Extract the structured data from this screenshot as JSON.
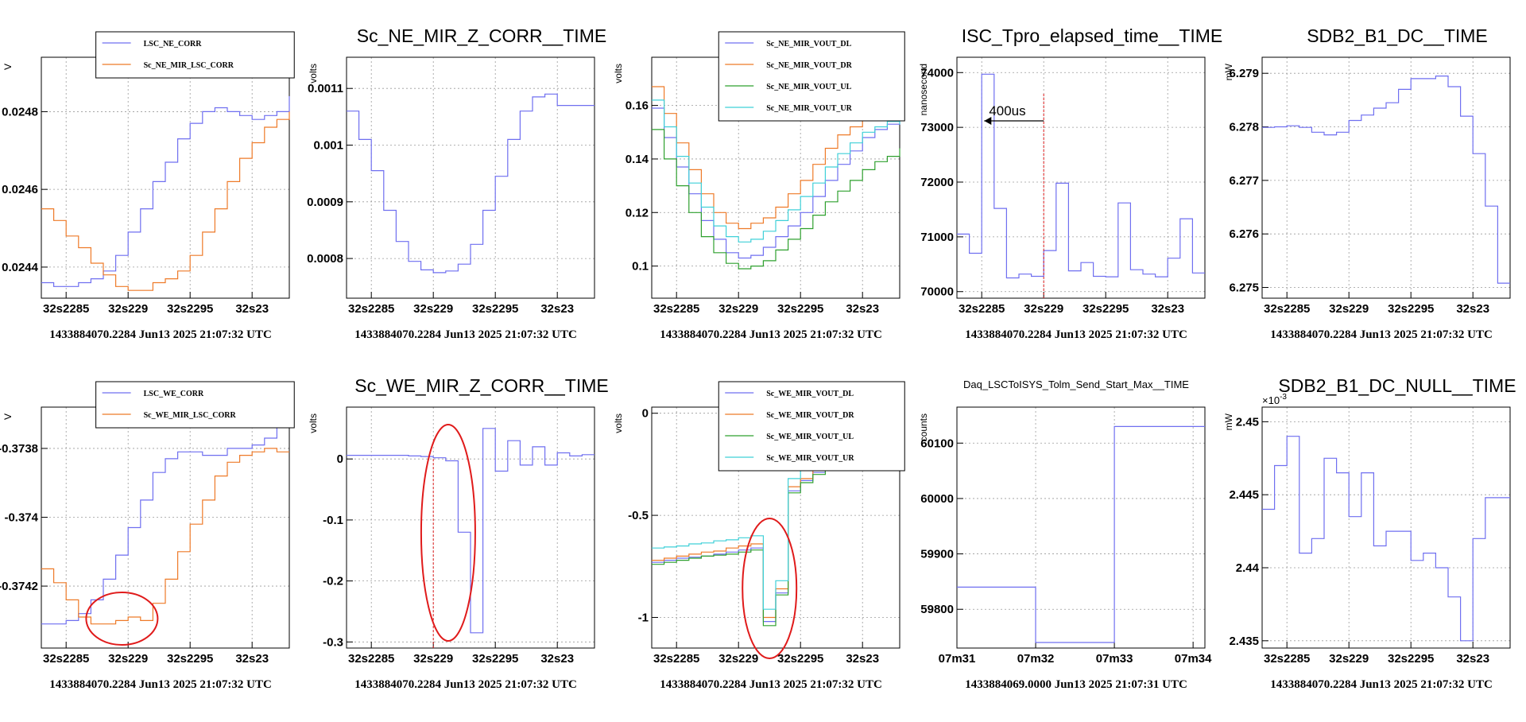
{
  "colors": {
    "blue": "#6f6ff0",
    "orange": "#ee7a28",
    "green": "#2ea02e",
    "cyan": "#3fd0d8",
    "red": "#e01b1b",
    "grid": "#9a9a9a"
  },
  "chart_data": [
    {
      "type": "line",
      "step": true,
      "title": "",
      "ylabel": "V",
      "ylim": [
        0.02432,
        0.02494
      ],
      "yticks": [
        {
          "v": 0.0244,
          "label": "0.0244"
        },
        {
          "v": 0.0246,
          "label": "0.0246"
        },
        {
          "v": 0.0248,
          "label": "0.0248"
        }
      ],
      "xticks": [
        "32s2285",
        "32s229",
        "32s2295",
        "32s23"
      ],
      "xlim": [
        0,
        20
      ],
      "xtick_pos": [
        2,
        7,
        12,
        17
      ],
      "timestamp": "1433884070.2284 Jun13 2025 21:07:32 UTC",
      "legend": {
        "pos": "top",
        "frame": [
          0.22,
          0.97,
          1.02,
          0.83
        ]
      },
      "series": [
        {
          "name": "LSC_NE_CORR",
          "color": "blue",
          "values": [
            0.02436,
            0.02435,
            0.02435,
            0.02436,
            0.02437,
            0.02439,
            0.02443,
            0.02449,
            0.02455,
            0.02462,
            0.02467,
            0.02473,
            0.02477,
            0.0248,
            0.02481,
            0.0248,
            0.02479,
            0.02478,
            0.02479,
            0.0248,
            0.02484
          ]
        },
        {
          "name": "Sc_NE_MIR_LSC_CORR",
          "color": "orange",
          "values": [
            0.02455,
            0.02452,
            0.02448,
            0.02445,
            0.02441,
            0.02438,
            0.02435,
            0.02434,
            0.02434,
            0.02436,
            0.02437,
            0.02439,
            0.02443,
            0.02449,
            0.02455,
            0.02462,
            0.02468,
            0.02472,
            0.02476,
            0.02478,
            0.0248
          ]
        }
      ]
    },
    {
      "type": "line",
      "step": true,
      "title": "Sc_NE_MIR_Z_CORR__TIME",
      "ylabel": "volts",
      "ylim": [
        0.00073,
        0.001155
      ],
      "yticks": [
        {
          "v": 0.0008,
          "label": "0.0008"
        },
        {
          "v": 0.0009,
          "label": "0.0009"
        },
        {
          "v": 0.001,
          "label": "0.001"
        },
        {
          "v": 0.0011,
          "label": "0.0011"
        }
      ],
      "xticks": [
        "32s2285",
        "32s229",
        "32s2295",
        "32s23"
      ],
      "xlim": [
        0,
        20
      ],
      "xtick_pos": [
        2,
        7,
        12,
        17
      ],
      "timestamp": "1433884070.2284 Jun13 2025 21:07:32 UTC",
      "series": [
        {
          "name": "",
          "color": "blue",
          "values": [
            0.00106,
            0.00101,
            0.000955,
            0.000885,
            0.00083,
            0.000795,
            0.00078,
            0.000775,
            0.000778,
            0.00079,
            0.000825,
            0.000885,
            0.000945,
            0.00101,
            0.00106,
            0.001085,
            0.00109,
            0.00107,
            0.00107,
            0.00107,
            0.00107
          ]
        }
      ]
    },
    {
      "type": "line",
      "step": true,
      "title": "",
      "ylabel": "volts",
      "ylim": [
        0.088,
        0.178
      ],
      "yticks": [
        {
          "v": 0.1,
          "label": "0.1"
        },
        {
          "v": 0.12,
          "label": "0.12"
        },
        {
          "v": 0.14,
          "label": "0.14"
        },
        {
          "v": 0.16,
          "label": "0.16"
        }
      ],
      "xticks": [
        "32s2285",
        "32s229",
        "32s2295",
        "32s23"
      ],
      "xlim": [
        0,
        20
      ],
      "xtick_pos": [
        2,
        7,
        12,
        17
      ],
      "timestamp": "1433884070.2284 Jun13 2025 21:07:32 UTC",
      "legend": {
        "pos": "top-right",
        "frame": [
          0.27,
          0.97,
          1.02,
          0.78
        ]
      },
      "series": [
        {
          "name": "Sc_NE_MIR_VOUT_DL",
          "color": "blue",
          "values": [
            0.159,
            0.148,
            0.137,
            0.127,
            0.117,
            0.11,
            0.105,
            0.103,
            0.104,
            0.107,
            0.111,
            0.115,
            0.12,
            0.126,
            0.132,
            0.138,
            0.143,
            0.148,
            0.151,
            0.153,
            0.155
          ]
        },
        {
          "name": "Sc_NE_MIR_VOUT_DR",
          "color": "orange",
          "values": [
            0.167,
            0.157,
            0.146,
            0.136,
            0.127,
            0.12,
            0.116,
            0.114,
            0.116,
            0.118,
            0.122,
            0.127,
            0.132,
            0.138,
            0.144,
            0.149,
            0.152,
            0.156,
            0.158,
            0.16,
            0.16
          ]
        },
        {
          "name": "Sc_NE_MIR_VOUT_UL",
          "color": "green",
          "values": [
            0.151,
            0.14,
            0.13,
            0.12,
            0.111,
            0.105,
            0.101,
            0.099,
            0.1,
            0.102,
            0.106,
            0.11,
            0.114,
            0.119,
            0.124,
            0.128,
            0.132,
            0.136,
            0.139,
            0.141,
            0.144
          ]
        },
        {
          "name": "Sc_NE_MIR_VOUT_UR",
          "color": "cyan",
          "values": [
            0.162,
            0.152,
            0.141,
            0.131,
            0.122,
            0.115,
            0.111,
            0.109,
            0.11,
            0.113,
            0.117,
            0.121,
            0.126,
            0.131,
            0.137,
            0.142,
            0.146,
            0.15,
            0.152,
            0.154,
            0.153
          ]
        }
      ]
    },
    {
      "type": "line",
      "step": true,
      "title": "ISC_Tpro_elapsed_time__TIME",
      "ylabel": "nanosecond",
      "ylim": [
        69880,
        74280
      ],
      "yticks": [
        {
          "v": 70000,
          "label": "70000"
        },
        {
          "v": 71000,
          "label": "71000"
        },
        {
          "v": 72000,
          "label": "72000"
        },
        {
          "v": 73000,
          "label": "73000"
        },
        {
          "v": 74000,
          "label": "74000"
        }
      ],
      "xticks": [
        "32s2285",
        "32s229",
        "32s2295",
        "32s23"
      ],
      "xlim": [
        0,
        20
      ],
      "xtick_pos": [
        2,
        7,
        12,
        17
      ],
      "timestamp": "1433884070.2284 Jun13 2025 21:07:32 UTC",
      "annotation": {
        "text": "400us",
        "x": 7
      },
      "series": [
        {
          "name": "",
          "color": "blue",
          "values": [
            71050,
            70700,
            73970,
            71520,
            70250,
            70320,
            70280,
            70750,
            71980,
            70380,
            70530,
            70280,
            70270,
            71620,
            70400,
            70320,
            70270,
            70610,
            71330,
            70340,
            70340
          ]
        }
      ]
    },
    {
      "type": "line",
      "step": true,
      "title": "SDB2_B1_DC__TIME",
      "ylabel": "mW",
      "ylim": [
        6.2748,
        6.2793
      ],
      "yticks": [
        {
          "v": 6.275,
          "label": "6.275"
        },
        {
          "v": 6.276,
          "label": "6.276"
        },
        {
          "v": 6.277,
          "label": "6.277"
        },
        {
          "v": 6.278,
          "label": "6.278"
        },
        {
          "v": 6.279,
          "label": "6.279"
        }
      ],
      "xticks": [
        "32s2285",
        "32s229",
        "32s2295",
        "32s23"
      ],
      "xlim": [
        0,
        20
      ],
      "xtick_pos": [
        2,
        7,
        12,
        17
      ],
      "timestamp": "1433884070.2284 Jun13 2025 21:07:32 UTC",
      "series": [
        {
          "name": "",
          "color": "blue",
          "values": [
            6.27799,
            6.278,
            6.27802,
            6.27799,
            6.2779,
            6.27785,
            6.2779,
            6.27812,
            6.27822,
            6.27835,
            6.27845,
            6.2787,
            6.2789,
            6.2789,
            6.27895,
            6.27875,
            6.2782,
            6.2775,
            6.27652,
            6.27508,
            6.27508
          ]
        }
      ]
    },
    {
      "type": "line",
      "step": true,
      "title": "",
      "ylabel": "V",
      "ylim": [
        -0.37438,
        -0.37368
      ],
      "yticks": [
        {
          "v": -0.3742,
          "label": "-0.3742"
        },
        {
          "v": -0.374,
          "label": "-0.374"
        },
        {
          "v": -0.3738,
          "label": "-0.3738"
        }
      ],
      "xticks": [
        "32s2285",
        "32s229",
        "32s2295",
        "32s23"
      ],
      "xlim": [
        0,
        20
      ],
      "xtick_pos": [
        2,
        7,
        12,
        17
      ],
      "timestamp": "1433884070.2284 Jun13 2025 21:07:32 UTC",
      "legend": {
        "pos": "top",
        "frame": [
          0.22,
          0.99,
          1.02,
          0.87
        ]
      },
      "series": [
        {
          "name": "LSC_WE_CORR",
          "color": "blue",
          "values": [
            -0.37431,
            -0.37431,
            -0.3743,
            -0.37428,
            -0.37424,
            -0.37418,
            -0.37411,
            -0.37403,
            -0.37395,
            -0.37387,
            -0.37383,
            -0.37381,
            -0.37381,
            -0.37382,
            -0.37382,
            -0.3738,
            -0.3738,
            -0.37379,
            -0.37377,
            -0.37372,
            -0.37372
          ]
        },
        {
          "name": "Sc_WE_MIR_LSC_CORR",
          "color": "orange",
          "values": [
            -0.37415,
            -0.37419,
            -0.37424,
            -0.37429,
            -0.37431,
            -0.37431,
            -0.3743,
            -0.37429,
            -0.3743,
            -0.37425,
            -0.37418,
            -0.3741,
            -0.37402,
            -0.37395,
            -0.37388,
            -0.37384,
            -0.37382,
            -0.37381,
            -0.3738,
            -0.37381,
            -0.37381
          ]
        }
      ]
    },
    {
      "type": "line",
      "step": true,
      "title": "Sc_WE_MIR_Z_CORR__TIME",
      "ylabel": "volts",
      "ylim": [
        -0.31,
        0.085
      ],
      "yticks": [
        {
          "v": -0.3,
          "label": "-0.3"
        },
        {
          "v": -0.2,
          "label": "-0.2"
        },
        {
          "v": -0.1,
          "label": "-0.1"
        },
        {
          "v": 0,
          "label": "0"
        }
      ],
      "xticks": [
        "32s2285",
        "32s229",
        "32s2295",
        "32s23"
      ],
      "xlim": [
        0,
        20
      ],
      "xtick_pos": [
        2,
        7,
        12,
        17
      ],
      "timestamp": "1433884070.2284 Jun13 2025 21:07:32 UTC",
      "series": [
        {
          "name": "",
          "color": "blue",
          "values": [
            0.006,
            0.006,
            0.006,
            0.006,
            0.006,
            0.005,
            0.004,
            0.002,
            -0.003,
            -0.12,
            -0.285,
            0.05,
            -0.02,
            0.03,
            -0.01,
            0.02,
            -0.01,
            0.01,
            0.005,
            0.007,
            0.007
          ]
        }
      ],
      "markers": [
        {
          "x": 7
        },
        {
          "ellipse_x": 8.2
        }
      ]
    },
    {
      "type": "line",
      "step": true,
      "title": "",
      "ylabel": "volts",
      "ylim": [
        -1.15,
        0.03
      ],
      "yticks": [
        {
          "v": -1,
          "label": "-1"
        },
        {
          "v": -0.5,
          "label": "-0.5"
        },
        {
          "v": 0,
          "label": "0"
        }
      ],
      "xticks": [
        "32s2285",
        "32s229",
        "32s2295",
        "32s23"
      ],
      "xlim": [
        0,
        20
      ],
      "xtick_pos": [
        2,
        7,
        12,
        17
      ],
      "timestamp": "1433884070.2284 Jun13 2025 21:07:32 UTC",
      "legend": {
        "pos": "top-right",
        "frame": [
          0.27,
          1.0,
          1.02,
          0.78
        ]
      },
      "series": [
        {
          "name": "Sc_WE_MIR_VOUT_DL",
          "color": "blue",
          "values": [
            -0.73,
            -0.72,
            -0.71,
            -0.705,
            -0.7,
            -0.69,
            -0.68,
            -0.67,
            -0.66,
            -1.02,
            -0.88,
            -0.38,
            -0.33,
            -0.29,
            -0.25,
            -0.22,
            -0.2,
            -0.18,
            -0.16,
            -0.14,
            -0.14
          ]
        },
        {
          "name": "Sc_WE_MIR_VOUT_DR",
          "color": "orange",
          "values": [
            -0.72,
            -0.71,
            -0.7,
            -0.69,
            -0.68,
            -0.675,
            -0.66,
            -0.65,
            -0.64,
            -1.0,
            -0.86,
            -0.36,
            -0.32,
            -0.28,
            -0.24,
            -0.21,
            -0.19,
            -0.17,
            -0.15,
            -0.13,
            -0.13
          ]
        },
        {
          "name": "Sc_WE_MIR_VOUT_UL",
          "color": "green",
          "values": [
            -0.74,
            -0.73,
            -0.72,
            -0.71,
            -0.7,
            -0.695,
            -0.69,
            -0.68,
            -0.67,
            -1.04,
            -0.89,
            -0.39,
            -0.34,
            -0.3,
            -0.26,
            -0.23,
            -0.21,
            -0.19,
            -0.17,
            -0.15,
            -0.15
          ]
        },
        {
          "name": "Sc_WE_MIR_VOUT_UR",
          "color": "cyan",
          "values": [
            -0.66,
            -0.655,
            -0.65,
            -0.64,
            -0.635,
            -0.625,
            -0.62,
            -0.61,
            -0.6,
            -0.96,
            -0.82,
            -0.32,
            -0.27,
            -0.23,
            -0.19,
            -0.16,
            -0.13,
            -0.11,
            -0.09,
            -0.08,
            -0.08
          ]
        }
      ],
      "markers": [
        {
          "ellipse_x": 9.5
        }
      ]
    },
    {
      "type": "line",
      "step": true,
      "title": "Daq_LSCToISYS_Tolm_Send_Start_Max__TIME",
      "ylabel": "counts",
      "ylim": [
        59730,
        60165
      ],
      "yticks": [
        {
          "v": 59800,
          "label": "59800"
        },
        {
          "v": 59900,
          "label": "59900"
        },
        {
          "v": 60000,
          "label": "60000"
        },
        {
          "v": 60100,
          "label": "60100"
        }
      ],
      "xticks": [
        "07m31",
        "07m32",
        "07m33",
        "07m34"
      ],
      "xlim": [
        0,
        3.15
      ],
      "xtick_pos": [
        0,
        1,
        2,
        3
      ],
      "timestamp": "1433884069.0000 Jun13 2025 21:07:31 UTC",
      "series": [
        {
          "name": "",
          "color": "blue",
          "x": [
            0,
            1,
            2,
            3.15
          ],
          "values": [
            59840,
            59740,
            60130,
            60130
          ]
        }
      ]
    },
    {
      "type": "line",
      "step": true,
      "title": "SDB2_B1_DC_NULL__TIME",
      "ylabel": "mW",
      "ylim": [
        0.0024345,
        0.002451
      ],
      "exponent": "×10",
      "exponent_power": "-3",
      "yticks": [
        {
          "v": 0.002435,
          "label": "2.435"
        },
        {
          "v": 0.00244,
          "label": "2.44"
        },
        {
          "v": 0.002445,
          "label": "2.445"
        },
        {
          "v": 0.00245,
          "label": "2.45"
        }
      ],
      "xticks": [
        "32s2285",
        "32s229",
        "32s2295",
        "32s23"
      ],
      "xlim": [
        0,
        20
      ],
      "xtick_pos": [
        2,
        7,
        12,
        17
      ],
      "timestamp": "1433884070.2284 Jun13 2025 21:07:32 UTC",
      "series": [
        {
          "name": "",
          "color": "blue",
          "values": [
            0.002444,
            0.002447,
            0.002449,
            0.002441,
            0.002442,
            0.0024475,
            0.0024465,
            0.0024435,
            0.0024465,
            0.0024415,
            0.0024425,
            0.0024425,
            0.0024405,
            0.002441,
            0.00244,
            0.002438,
            0.002435,
            0.002442,
            0.0024448,
            0.0024448,
            0.0024448
          ]
        }
      ]
    }
  ]
}
